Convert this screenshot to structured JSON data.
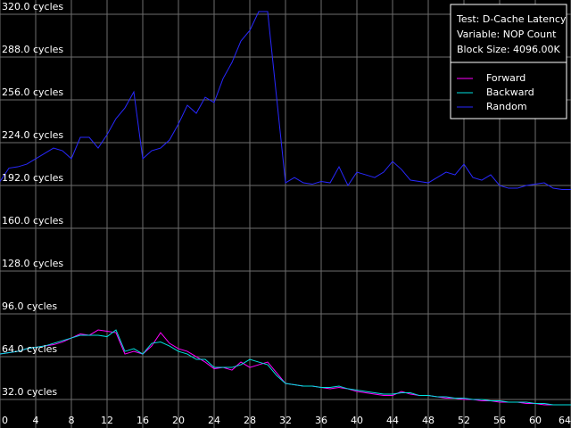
{
  "chart_data": {
    "type": "line",
    "info": [
      "Test: D-Cache Latency",
      "Variable: NOP Count",
      "Block Size: 4096.00K"
    ],
    "x": [
      0,
      1,
      2,
      3,
      4,
      5,
      6,
      7,
      8,
      9,
      10,
      11,
      12,
      13,
      14,
      15,
      16,
      17,
      18,
      19,
      20,
      21,
      22,
      23,
      24,
      25,
      26,
      27,
      28,
      29,
      30,
      31,
      32,
      33,
      34,
      35,
      36,
      37,
      38,
      39,
      40,
      41,
      42,
      43,
      44,
      45,
      46,
      47,
      48,
      49,
      50,
      51,
      52,
      53,
      54,
      55,
      56,
      57,
      58,
      59,
      60,
      61,
      62,
      63,
      64
    ],
    "series": [
      {
        "name": "Forward",
        "color": "#ff00ff",
        "values": [
          66,
          67,
          68,
          70,
          71,
          72,
          73,
          75,
          78,
          81,
          80,
          84,
          83,
          82,
          66,
          68,
          66,
          72,
          82,
          74,
          70,
          68,
          64,
          60,
          55,
          56,
          54,
          60,
          56,
          58,
          60,
          52,
          44,
          43,
          42,
          42,
          41,
          40,
          41,
          40,
          38,
          37,
          36,
          35,
          35,
          38,
          36,
          35,
          35,
          34,
          33,
          33,
          32,
          32,
          31,
          31,
          30,
          30,
          30,
          29,
          29,
          28,
          28,
          28,
          28
        ]
      },
      {
        "name": "Backward",
        "color": "#00e0e0",
        "values": [
          66,
          67,
          68,
          70,
          71,
          72,
          74,
          76,
          78,
          80,
          80,
          80,
          79,
          84,
          68,
          70,
          66,
          74,
          75,
          72,
          68,
          66,
          62,
          62,
          56,
          56,
          56,
          58,
          62,
          60,
          58,
          50,
          44,
          43,
          42,
          42,
          41,
          41,
          42,
          40,
          39,
          38,
          37,
          36,
          36,
          37,
          37,
          35,
          35,
          34,
          34,
          33,
          33,
          32,
          32,
          31,
          31,
          30,
          30,
          30,
          29,
          29,
          28,
          28,
          28
        ]
      },
      {
        "name": "Random",
        "color": "#2828ff",
        "values": [
          195,
          205,
          206,
          208,
          212,
          216,
          220,
          218,
          212,
          228,
          228,
          220,
          230,
          242,
          250,
          262,
          212,
          218,
          220,
          226,
          238,
          252,
          246,
          258,
          254,
          272,
          284,
          300,
          308,
          322,
          322,
          258,
          194,
          198,
          194,
          193,
          195,
          194,
          206,
          192,
          202,
          200,
          198,
          202,
          210,
          204,
          196,
          195,
          194,
          198,
          202,
          200,
          208,
          198,
          196,
          200,
          192,
          190,
          190,
          192,
          193,
          194,
          190,
          189,
          189
        ]
      }
    ],
    "xlim": [
      0,
      64
    ],
    "xticks": [
      0,
      4,
      8,
      12,
      16,
      20,
      24,
      28,
      32,
      36,
      40,
      44,
      48,
      52,
      56,
      60,
      64
    ],
    "ylim": [
      10.7,
      330.7
    ],
    "yticks": [
      {
        "value": 32,
        "label": "32.0 cycles"
      },
      {
        "value": 64,
        "label": "64.0 cycles"
      },
      {
        "value": 96,
        "label": "96.0 cycles"
      },
      {
        "value": 128,
        "label": "128.0 cycles"
      },
      {
        "value": 160,
        "label": "160.0 cycles"
      },
      {
        "value": 192,
        "label": "192.0 cycles"
      },
      {
        "value": 224,
        "label": "224.0 cycles"
      },
      {
        "value": 256,
        "label": "256.0 cycles"
      },
      {
        "value": 288,
        "label": "288.0 cycles"
      },
      {
        "value": 320,
        "label": "320.0 cycles"
      }
    ],
    "grid": true
  }
}
